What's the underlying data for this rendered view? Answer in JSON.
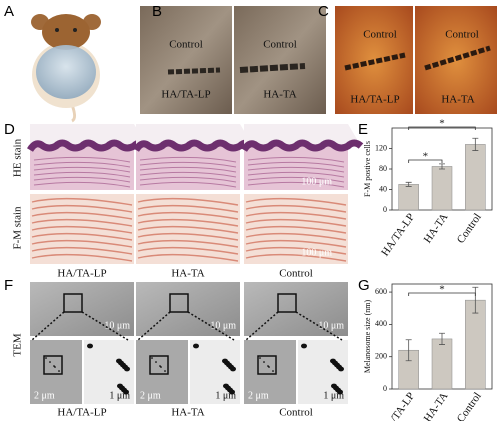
{
  "panel_labels": [
    "A",
    "B",
    "C",
    "D",
    "E",
    "F",
    "G"
  ],
  "panel_b": [
    "Control",
    "HA/TA-LP",
    "Control",
    "HA-TA"
  ],
  "panel_c": [
    "Control",
    "HA/TA-LP",
    "Control",
    "HA-TA"
  ],
  "panel_d": {
    "rows": [
      "HE stain",
      "F-M stain"
    ],
    "scale_bars": [
      "100 μm",
      "100 μm"
    ],
    "columns": [
      "HA/TA-LP",
      "HA-TA",
      "Control"
    ]
  },
  "panel_f": {
    "row_label": "TEM",
    "scale_bars_top": [
      "10 μm",
      "10 μm",
      "10 μm"
    ],
    "scale_bars_bottom": [
      "2 μm",
      "1 μm",
      "2 μm",
      "1 μm",
      "2 μm",
      "1 μm"
    ],
    "columns": [
      "HA/TA-LP",
      "HA-TA",
      "Control"
    ]
  },
  "chart_data": [
    {
      "type": "bar",
      "y_label": "F-M postive cells",
      "categories": [
        "HA/TA-LP",
        "HA-TA",
        "Control"
      ],
      "values": [
        50,
        85,
        128
      ],
      "errors": [
        4,
        5,
        12
      ],
      "color": "#cdc8c0",
      "ylim": [
        0,
        160
      ],
      "yticks": [
        0,
        40,
        80,
        120
      ],
      "significance": [
        "*",
        "*"
      ]
    },
    {
      "type": "bar",
      "y_label": "Melanosome size (nm)",
      "categories": [
        "HA/TA-LP",
        "HA-TA",
        "Control"
      ],
      "values": [
        240,
        310,
        550
      ],
      "errors": [
        65,
        35,
        80
      ],
      "color": "#cdc8c0",
      "ylim": [
        0,
        650
      ],
      "yticks": [
        0,
        200,
        400,
        600
      ],
      "significance": [
        "*"
      ]
    }
  ]
}
